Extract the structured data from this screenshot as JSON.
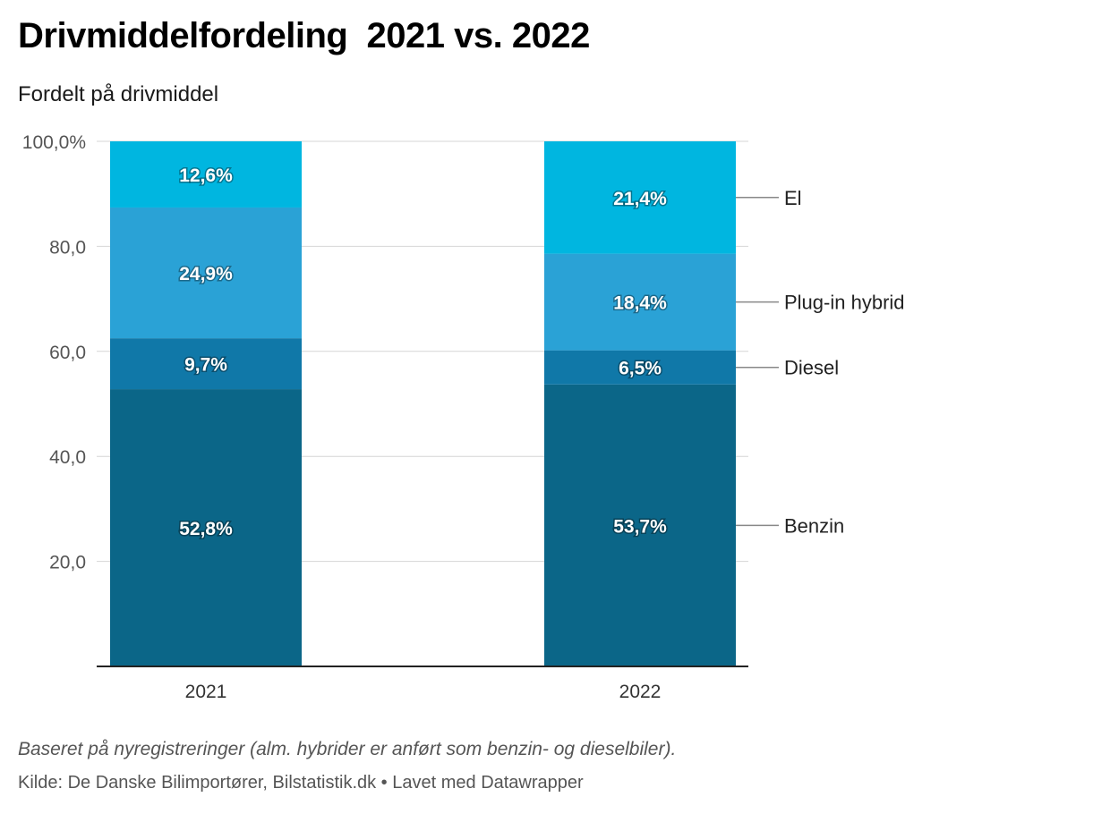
{
  "header": {
    "title": "Drivmiddelfordeling  2021 vs. 2022",
    "subtitle": "Fordelt på drivmiddel"
  },
  "chart_data": {
    "type": "bar",
    "stacked": true,
    "categories": [
      "2021",
      "2022"
    ],
    "series": [
      {
        "name": "Benzin",
        "values": [
          52.8,
          53.7
        ],
        "labels": [
          "52,8%",
          "53,7%"
        ],
        "color": "#0b6688"
      },
      {
        "name": "Diesel",
        "values": [
          9.7,
          6.5
        ],
        "labels": [
          "9,7%",
          "6,5%"
        ],
        "color": "#1078a8"
      },
      {
        "name": "Plug-in hybrid",
        "values": [
          24.9,
          18.4
        ],
        "labels": [
          "24,9%",
          "18,4%"
        ],
        "color": "#2aa2d6"
      },
      {
        "name": "El",
        "values": [
          12.6,
          21.4
        ],
        "labels": [
          "12,6%",
          "21,4%"
        ],
        "color": "#00b6e0"
      }
    ],
    "ylim": [
      0,
      100
    ],
    "yticks": [
      20,
      40,
      60,
      80,
      100
    ],
    "ytick_labels": [
      "20,0",
      "40,0",
      "60,0",
      "80,0",
      "100,0%"
    ],
    "grid": true,
    "legend": "right, labels attached to last bar"
  },
  "footer": {
    "notes": "Baseret på nyregistreringer (alm. hybrider er anført som benzin- og dieselbiler).",
    "source": "Kilde: De Danske Bilimportører, Bilstatistik.dk • Lavet med Datawrapper"
  }
}
